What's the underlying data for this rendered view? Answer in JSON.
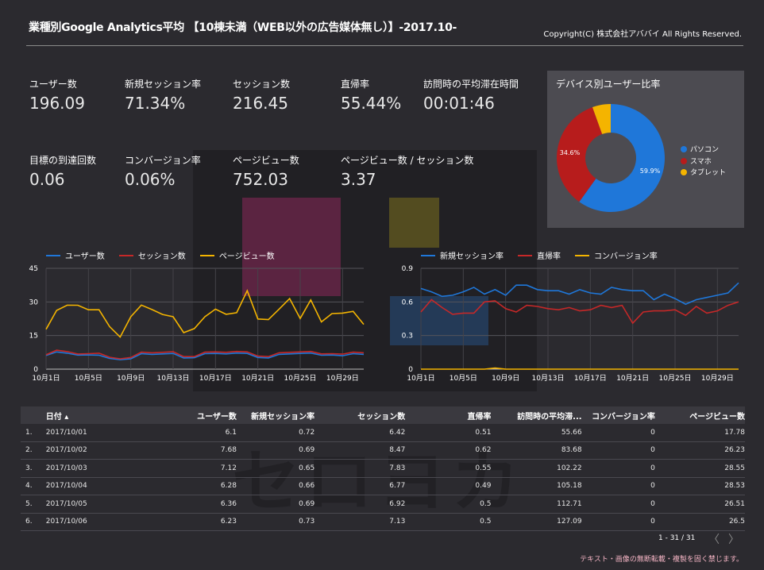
{
  "header": {
    "title": "業種別Google Analytics平均 【10棟未満（WEB以外の広告媒体無し）】-2017.10-",
    "copyright": "Copyright(C) 株式会社アババイ All Rights Reserved."
  },
  "kpis": [
    {
      "label": "ユーザー数",
      "value": "196.09"
    },
    {
      "label": "新規セッション率",
      "value": "71.34%"
    },
    {
      "label": "セッション数",
      "value": "216.45"
    },
    {
      "label": "直帰率",
      "value": "55.44%"
    },
    {
      "label": "訪問時の平均滞在時間",
      "value": "00:01:46"
    },
    {
      "label": "目標の到達回数",
      "value": "0.06"
    },
    {
      "label": "コンバージョン率",
      "value": "0.06%"
    },
    {
      "label": "ページビュー数",
      "value": "752.03"
    },
    {
      "label": "ページビュー数 / セッション数",
      "value": "3.37"
    }
  ],
  "device": {
    "title": "デバイス別ユーザー比率",
    "slices": [
      {
        "name": "パソコン",
        "value": 59.9,
        "label": "59.9%",
        "color": "#1f77d9"
      },
      {
        "name": "スマホ",
        "value": 34.6,
        "label": "34.6%",
        "color": "#b71c1c"
      },
      {
        "name": "タブレット",
        "value": 5.5,
        "label": "",
        "color": "#f4b400"
      }
    ]
  },
  "watermark": {
    "glyphs": "セロヨカ"
  },
  "chart_data": [
    {
      "type": "line",
      "ylim": [
        0,
        45
      ],
      "yticks": [
        0,
        15,
        30,
        45
      ],
      "xtick_labels": [
        "10月1日",
        "10月5日",
        "10月9日",
        "10月13日",
        "10月17日",
        "10月21日",
        "10月25日",
        "10月29日"
      ],
      "xtick_index": [
        0,
        4,
        8,
        12,
        16,
        20,
        24,
        28
      ],
      "series": [
        {
          "name": "ユーザー数",
          "color": "#1f77d9",
          "values": [
            6.1,
            7.68,
            7.12,
            6.28,
            6.36,
            6.23,
            4.8,
            4.2,
            4.6,
            6.9,
            6.6,
            6.8,
            7.0,
            5.0,
            5.1,
            6.9,
            7.0,
            6.8,
            7.2,
            7.0,
            5.2,
            5.0,
            6.6,
            6.8,
            7.0,
            7.2,
            6.2,
            6.3,
            6.0,
            6.9,
            6.6
          ]
        },
        {
          "name": "セッション数",
          "color": "#c62828",
          "values": [
            6.42,
            8.47,
            7.83,
            6.77,
            6.92,
            7.13,
            5.3,
            4.6,
            5.2,
            7.6,
            7.3,
            7.5,
            7.8,
            5.6,
            5.6,
            7.6,
            7.7,
            7.5,
            7.9,
            7.7,
            5.8,
            5.6,
            7.3,
            7.5,
            7.7,
            7.9,
            6.8,
            6.9,
            6.7,
            7.6,
            7.3
          ]
        },
        {
          "name": "ページビュー数",
          "color": "#f4b400",
          "values": [
            17.78,
            26.23,
            28.55,
            28.53,
            26.51,
            26.5,
            19.0,
            14.3,
            23.4,
            28.6,
            26.6,
            24.4,
            23.4,
            16.3,
            18.1,
            23.4,
            26.8,
            24.5,
            25.2,
            35.0,
            22.4,
            22.1,
            26.7,
            31.5,
            22.6,
            30.9,
            21.1,
            24.8,
            25.0,
            25.8,
            20.0
          ]
        }
      ]
    },
    {
      "type": "line",
      "ylim": [
        0,
        0.9
      ],
      "yticks": [
        0,
        0.3,
        0.6,
        0.9
      ],
      "xtick_labels": [
        "10月1日",
        "10月5日",
        "10月9日",
        "10月13日",
        "10月17日",
        "10月21日",
        "10月25日",
        "10月29日"
      ],
      "xtick_index": [
        0,
        4,
        8,
        12,
        16,
        20,
        24,
        28
      ],
      "series": [
        {
          "name": "新規セッション率",
          "color": "#1f77d9",
          "values": [
            0.72,
            0.69,
            0.65,
            0.66,
            0.69,
            0.73,
            0.67,
            0.71,
            0.66,
            0.75,
            0.75,
            0.71,
            0.7,
            0.7,
            0.67,
            0.71,
            0.68,
            0.67,
            0.73,
            0.71,
            0.7,
            0.7,
            0.62,
            0.67,
            0.63,
            0.58,
            0.62,
            0.64,
            0.66,
            0.68,
            0.77
          ]
        },
        {
          "name": "直帰率",
          "color": "#c62828",
          "values": [
            0.51,
            0.62,
            0.55,
            0.49,
            0.5,
            0.5,
            0.6,
            0.61,
            0.54,
            0.51,
            0.57,
            0.56,
            0.54,
            0.53,
            0.55,
            0.52,
            0.53,
            0.57,
            0.55,
            0.57,
            0.41,
            0.51,
            0.52,
            0.52,
            0.53,
            0.48,
            0.56,
            0.5,
            0.52,
            0.57,
            0.6
          ]
        },
        {
          "name": "コンバージョン率",
          "color": "#f4b400",
          "values": [
            0,
            0,
            0,
            0,
            0,
            0,
            0,
            0.01,
            0,
            0,
            0,
            0,
            0,
            0,
            0,
            0,
            0,
            0,
            0,
            0,
            0,
            0,
            0,
            0,
            0,
            0,
            0,
            0,
            0,
            0,
            0
          ]
        }
      ]
    }
  ],
  "table": {
    "columns": [
      "日付 ▴",
      "ユーザー数",
      "新規セッション率",
      "セッション数",
      "直帰率",
      "訪問時の平均滞...",
      "コンバージョン率",
      "ページビュー数"
    ],
    "rows": [
      {
        "idx": "1.",
        "cells": [
          "2017/10/01",
          "6.1",
          "0.72",
          "6.42",
          "0.51",
          "55.66",
          "0",
          "17.78"
        ]
      },
      {
        "idx": "2.",
        "cells": [
          "2017/10/02",
          "7.68",
          "0.69",
          "8.47",
          "0.62",
          "83.68",
          "0",
          "26.23"
        ]
      },
      {
        "idx": "3.",
        "cells": [
          "2017/10/03",
          "7.12",
          "0.65",
          "7.83",
          "0.55",
          "102.22",
          "0",
          "28.55"
        ]
      },
      {
        "idx": "4.",
        "cells": [
          "2017/10/04",
          "6.28",
          "0.66",
          "6.77",
          "0.49",
          "105.18",
          "0",
          "28.53"
        ]
      },
      {
        "idx": "5.",
        "cells": [
          "2017/10/05",
          "6.36",
          "0.69",
          "6.92",
          "0.5",
          "112.71",
          "0",
          "26.51"
        ]
      },
      {
        "idx": "6.",
        "cells": [
          "2017/10/06",
          "6.23",
          "0.73",
          "7.13",
          "0.5",
          "127.09",
          "0",
          "26.5"
        ]
      }
    ]
  },
  "pager": {
    "text": "1 - 31 / 31",
    "prev": "〈",
    "next": "〉"
  },
  "footer": {
    "note": "テキスト・画像の無断転載・複製を固く禁じます。"
  }
}
